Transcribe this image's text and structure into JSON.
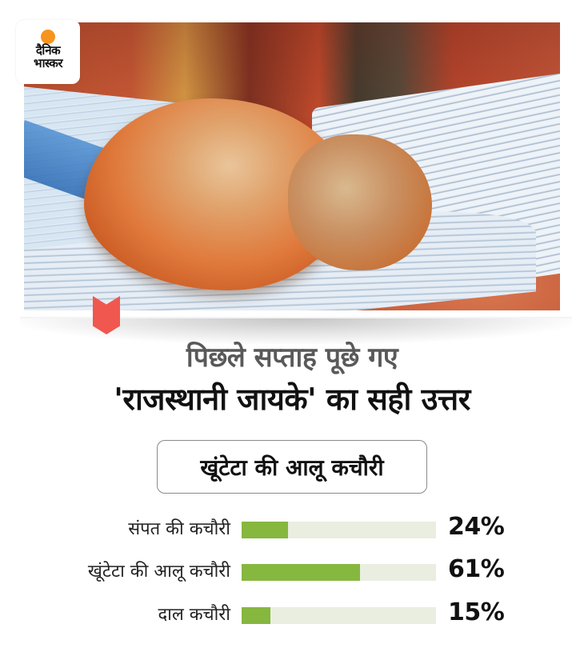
{
  "brand": {
    "logo_line1": "दैनिक",
    "logo_line2": "भास्कर",
    "logo_sun_color": "#f7941d"
  },
  "photo": {
    "subject": "kachori-on-newspaper-photo"
  },
  "accent": {
    "chevron_color": "#f0574e",
    "bar_fill_color": "#86b73f",
    "bar_track_color": "#e9eee0"
  },
  "headline": {
    "line1": "पिछले सप्ताह पूछे गए",
    "line2": "'राजस्थानी जायके' का सही उत्तर"
  },
  "answer": {
    "label": "खूंटेटा की आलू कचौरी"
  },
  "poll": {
    "options": [
      {
        "label": "संपत की कचौरी",
        "percent": 24,
        "percent_label": "24%"
      },
      {
        "label": "खूंटेटा की आलू कचौरी",
        "percent": 61,
        "percent_label": "61%"
      },
      {
        "label": "दाल कचौरी",
        "percent": 15,
        "percent_label": "15%"
      }
    ]
  },
  "chart_data": {
    "type": "bar",
    "orientation": "horizontal",
    "title": "पिछले सप्ताह पूछे गए 'राजस्थानी जायके' का सही उत्तर",
    "categories": [
      "संपत की कचौरी",
      "खूंटेटा की आलू कचौरी",
      "दाल कचौरी"
    ],
    "values": [
      24,
      61,
      15
    ],
    "value_labels": [
      "24%",
      "61%",
      "15%"
    ],
    "xlabel": "",
    "ylabel": "",
    "xlim": [
      0,
      100
    ],
    "grid": false,
    "legend": "none"
  }
}
